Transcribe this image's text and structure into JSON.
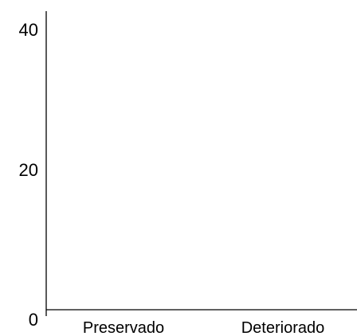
{
  "chart_data": {
    "type": "bar",
    "title": "",
    "xlabel": "",
    "ylabel": "",
    "categories": [
      "Preservado",
      "Deteriorado"
    ],
    "series": [
      {
        "values": [
          0,
          0
        ]
      }
    ],
    "ylim": [
      0,
      40
    ],
    "yticks": [
      0,
      20,
      40
    ],
    "ytick_labels": [
      "0",
      "20",
      "40"
    ],
    "grid": false,
    "legend": "none",
    "colors": {
      "axis": "#000000",
      "text": "#000000",
      "background": "#ffffff"
    }
  }
}
